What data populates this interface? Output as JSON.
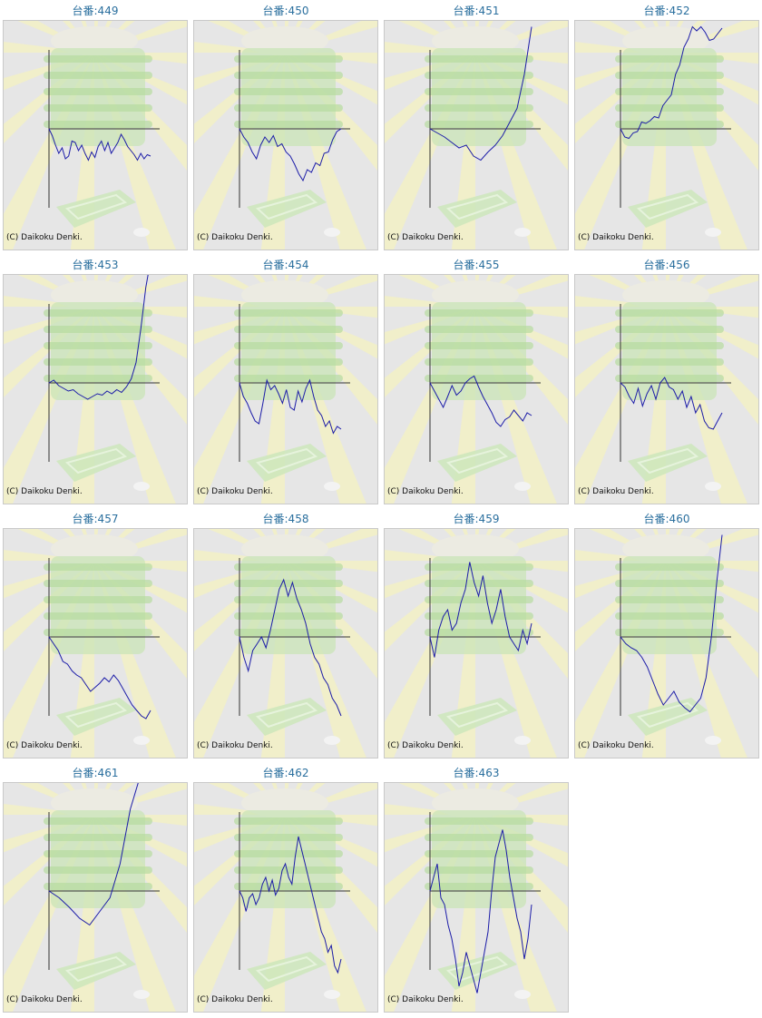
{
  "copyright": "(C) Daikoku Denki.",
  "title_prefix": "台番:",
  "colors": {
    "line": "#1c1ca8",
    "axis": "#333333",
    "title": "#2a6f9e",
    "panel_bg": "#e6e6e6",
    "rays": "#f2f0c6",
    "machine": "#c9e4b7"
  },
  "chart_data": [
    {
      "type": "line",
      "title": "台番:449",
      "values": [
        0,
        -5,
        -12,
        -18,
        -14,
        -22,
        -20,
        -9,
        -10,
        -16,
        -12,
        -18,
        -23,
        -17,
        -21,
        -13,
        -9,
        -16,
        -10,
        -18,
        -14,
        -10,
        -4,
        -8,
        -13,
        -16,
        -19,
        -23,
        -18,
        -22,
        -19,
        -20
      ]
    },
    {
      "type": "line",
      "title": "台番:450",
      "values": [
        0,
        -6,
        -10,
        -17,
        -22,
        -12,
        -6,
        -10,
        -5,
        -13,
        -11,
        -17,
        -20,
        -26,
        -33,
        -38,
        -30,
        -32,
        -25,
        -27,
        -18,
        -17,
        -8,
        -2,
        0
      ]
    },
    {
      "type": "line",
      "title": "台番:451",
      "values": [
        0,
        -3,
        -6,
        -10,
        -14,
        -12,
        -20,
        -23,
        -17,
        -12,
        -5,
        5,
        15,
        40,
        75
      ]
    },
    {
      "type": "line",
      "title": "台番:452",
      "values": [
        0,
        -6,
        -7,
        -3,
        -2,
        5,
        4,
        6,
        9,
        8,
        17,
        21,
        25,
        40,
        47,
        60,
        66,
        75,
        72,
        75,
        71,
        65,
        66,
        70,
        74
      ]
    },
    {
      "type": "line",
      "title": "台番:453",
      "values": [
        0,
        2,
        -2,
        -4,
        -6,
        -5,
        -8,
        -10,
        -12,
        -10,
        -8,
        -9,
        -6,
        -8,
        -5,
        -7,
        -3,
        3,
        15,
        40,
        70,
        90
      ]
    },
    {
      "type": "line",
      "title": "台番:454",
      "values": [
        0,
        -10,
        -15,
        -22,
        -28,
        -30,
        -15,
        2,
        -5,
        -2,
        -8,
        -15,
        -5,
        -18,
        -20,
        -6,
        -14,
        -4,
        2,
        -10,
        -20,
        -24,
        -32,
        -28,
        -37,
        -32,
        -34
      ]
    },
    {
      "type": "line",
      "title": "台番:455",
      "values": [
        0,
        -6,
        -12,
        -18,
        -10,
        -2,
        -9,
        -6,
        0,
        3,
        5,
        -3,
        -10,
        -16,
        -22,
        -29,
        -32,
        -27,
        -25,
        -20,
        -24,
        -28,
        -22,
        -24
      ]
    },
    {
      "type": "line",
      "title": "台番:456",
      "values": [
        0,
        -3,
        -10,
        -15,
        -4,
        -17,
        -8,
        -2,
        -12,
        0,
        4,
        -3,
        -5,
        -12,
        -6,
        -18,
        -10,
        -22,
        -16,
        -28,
        -33,
        -34,
        -28,
        -22
      ]
    },
    {
      "type": "line",
      "title": "台番:457",
      "values": [
        0,
        -5,
        -10,
        -18,
        -20,
        -25,
        -28,
        -30,
        -35,
        -40,
        -37,
        -34,
        -30,
        -33,
        -28,
        -32,
        -38,
        -44,
        -50,
        -54,
        -58,
        -60,
        -54
      ]
    },
    {
      "type": "line",
      "title": "台番:458",
      "values": [
        0,
        -15,
        -25,
        -10,
        -5,
        0,
        -8,
        5,
        20,
        35,
        42,
        30,
        40,
        28,
        20,
        10,
        -5,
        -15,
        -20,
        -30,
        -35,
        -45,
        -50,
        -58
      ]
    },
    {
      "type": "line",
      "title": "台番:459",
      "values": [
        0,
        -15,
        5,
        15,
        20,
        5,
        10,
        25,
        35,
        55,
        40,
        30,
        45,
        25,
        10,
        20,
        35,
        15,
        0,
        -5,
        -10,
        5,
        -5,
        10
      ]
    },
    {
      "type": "line",
      "title": "台番:460",
      "values": [
        0,
        -5,
        -8,
        -10,
        -15,
        -22,
        -32,
        -42,
        -50,
        -45,
        -40,
        -48,
        -52,
        -55,
        -50,
        -45,
        -30,
        0,
        40,
        75
      ]
    },
    {
      "type": "line",
      "title": "台番:461",
      "values": [
        0,
        -5,
        -12,
        -20,
        -25,
        -15,
        -5,
        20,
        60,
        85,
        95
      ]
    },
    {
      "type": "line",
      "title": "台番:462",
      "values": [
        0,
        -5,
        -15,
        -5,
        -2,
        -10,
        -5,
        5,
        10,
        0,
        8,
        -3,
        2,
        15,
        20,
        10,
        5,
        25,
        40,
        30,
        20,
        10,
        0,
        -10,
        -20,
        -30,
        -35,
        -45,
        -40,
        -55,
        -60,
        -50
      ]
    },
    {
      "type": "line",
      "title": "台番:463",
      "values": [
        0,
        10,
        20,
        -5,
        -10,
        -25,
        -35,
        -50,
        -70,
        -60,
        -45,
        -55,
        -65,
        -75,
        -60,
        -45,
        -30,
        0,
        25,
        35,
        45,
        30,
        10,
        -5,
        -20,
        -30,
        -50,
        -35,
        -10
      ]
    }
  ]
}
